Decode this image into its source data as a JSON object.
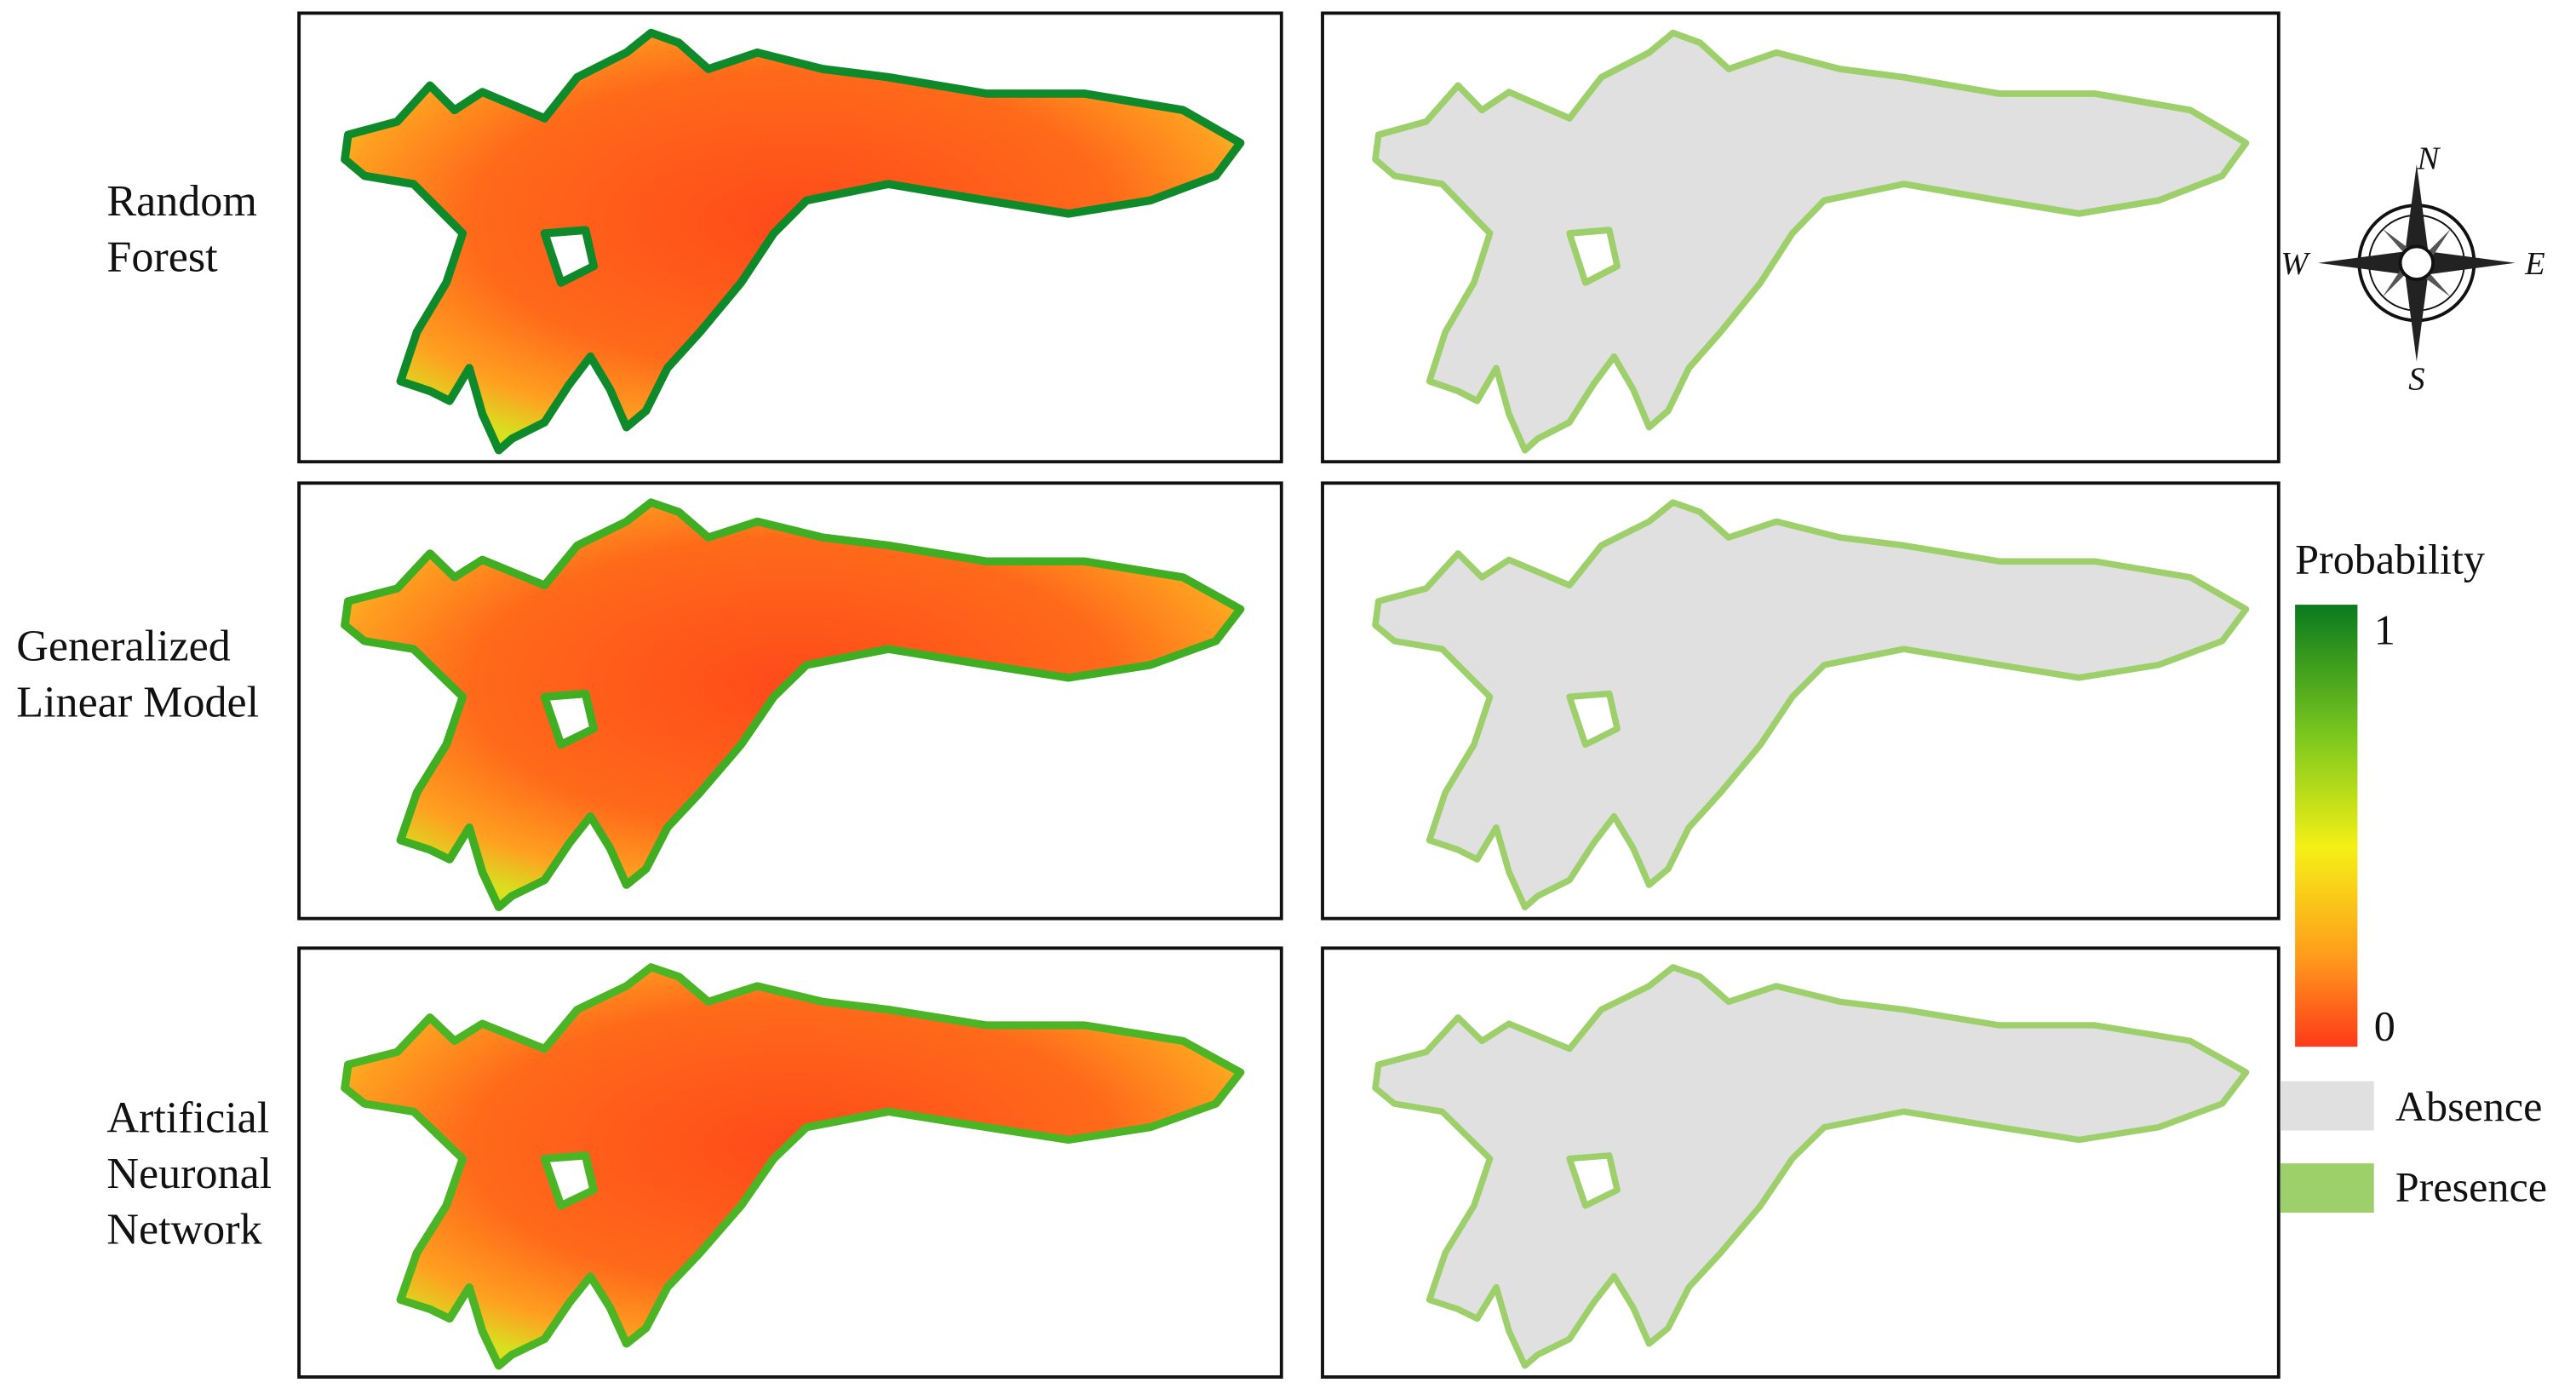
{
  "row_labels": [
    [
      "Random",
      "Forest"
    ],
    [
      "Generalized",
      "Linear Model"
    ],
    [
      "Artificial",
      "Neuronal",
      "Network"
    ]
  ],
  "compass": {
    "north": "N",
    "east": "E",
    "south": "S",
    "west": "W"
  },
  "legend": {
    "title": "Probability",
    "max": 1,
    "min": 0,
    "classes": [
      "Absence",
      "Presence"
    ]
  }
}
